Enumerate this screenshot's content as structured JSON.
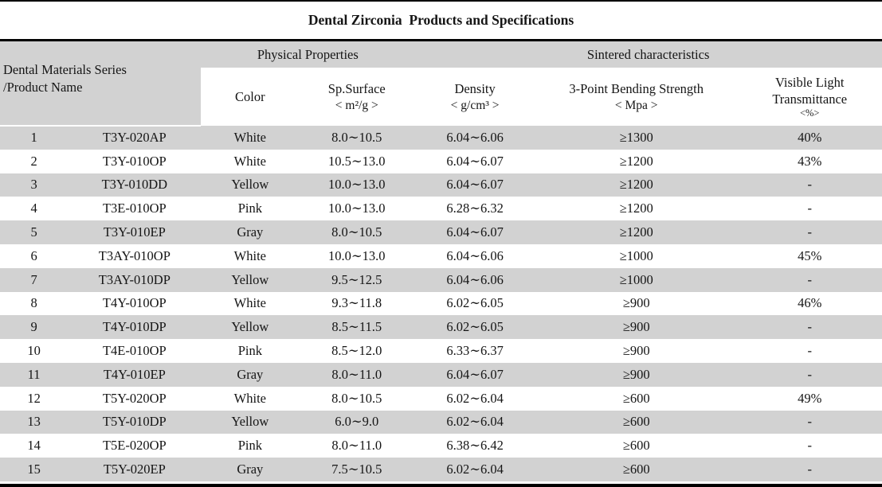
{
  "title": "Dental Zirconia  Products and Specifications",
  "colors": {
    "band_gray": "#d2d2d2",
    "border_black": "#000000",
    "background": "#ffffff"
  },
  "table": {
    "corner_header": {
      "line1": "Dental Materials Series",
      "line2": "/Product Name"
    },
    "groups": [
      {
        "label": "Physical Properties"
      },
      {
        "label": "Sintered characteristics"
      }
    ],
    "columns": [
      {
        "label": "Color"
      },
      {
        "label": "Sp.Surface",
        "unit": "< m²/g >"
      },
      {
        "label": "Density",
        "unit": "< g/cm³ >"
      },
      {
        "label": "3-Point Bending Strength",
        "unit": "< Mpa >"
      },
      {
        "label": "Visible Light",
        "label2": "Transmittance",
        "unit": "<%>"
      }
    ],
    "rows": [
      {
        "num": "1",
        "name": "T3Y-020AP",
        "color": "White",
        "sp_surface": "8.0∼10.5",
        "density": "6.04∼6.06",
        "strength": "≥1300",
        "transmittance": "40%"
      },
      {
        "num": "2",
        "name": "T3Y-010OP",
        "color": "White",
        "sp_surface": "10.5∼13.0",
        "density": "6.04∼6.07",
        "strength": "≥1200",
        "transmittance": "43%"
      },
      {
        "num": "3",
        "name": "T3Y-010DD",
        "color": "Yellow",
        "sp_surface": "10.0∼13.0",
        "density": "6.04∼6.07",
        "strength": "≥1200",
        "transmittance": "-"
      },
      {
        "num": "4",
        "name": "T3E-010OP",
        "color": "Pink",
        "sp_surface": "10.0∼13.0",
        "density": "6.28∼6.32",
        "strength": "≥1200",
        "transmittance": "-"
      },
      {
        "num": "5",
        "name": "T3Y-010EP",
        "color": "Gray",
        "sp_surface": "8.0∼10.5",
        "density": "6.04∼6.07",
        "strength": "≥1200",
        "transmittance": "-"
      },
      {
        "num": "6",
        "name": "T3AY-010OP",
        "color": "White",
        "sp_surface": "10.0∼13.0",
        "density": "6.04∼6.06",
        "strength": "≥1000",
        "transmittance": "45%"
      },
      {
        "num": "7",
        "name": "T3AY-010DP",
        "color": "Yellow",
        "sp_surface": "9.5∼12.5",
        "density": "6.04∼6.06",
        "strength": "≥1000",
        "transmittance": "-"
      },
      {
        "num": "8",
        "name": "T4Y-010OP",
        "color": "White",
        "sp_surface": "9.3∼11.8",
        "density": "6.02∼6.05",
        "strength": "≥900",
        "transmittance": "46%"
      },
      {
        "num": "9",
        "name": "T4Y-010DP",
        "color": "Yellow",
        "sp_surface": "8.5∼11.5",
        "density": "6.02∼6.05",
        "strength": "≥900",
        "transmittance": "-"
      },
      {
        "num": "10",
        "name": "T4E-010OP",
        "color": "Pink",
        "sp_surface": "8.5∼12.0",
        "density": "6.33∼6.37",
        "strength": "≥900",
        "transmittance": "-"
      },
      {
        "num": "11",
        "name": "T4Y-010EP",
        "color": "Gray",
        "sp_surface": "8.0∼11.0",
        "density": "6.04∼6.07",
        "strength": "≥900",
        "transmittance": "-"
      },
      {
        "num": "12",
        "name": "T5Y-020OP",
        "color": "White",
        "sp_surface": "8.0∼10.5",
        "density": "6.02∼6.04",
        "strength": "≥600",
        "transmittance": "49%"
      },
      {
        "num": "13",
        "name": "T5Y-010DP",
        "color": "Yellow",
        "sp_surface": "6.0∼9.0",
        "density": "6.02∼6.04",
        "strength": "≥600",
        "transmittance": "-"
      },
      {
        "num": "14",
        "name": "T5E-020OP",
        "color": "Pink",
        "sp_surface": "8.0∼11.0",
        "density": "6.38∼6.42",
        "strength": "≥600",
        "transmittance": "-"
      },
      {
        "num": "15",
        "name": "T5Y-020EP",
        "color": "Gray",
        "sp_surface": "7.5∼10.5",
        "density": "6.02∼6.04",
        "strength": "≥600",
        "transmittance": "-"
      }
    ]
  }
}
